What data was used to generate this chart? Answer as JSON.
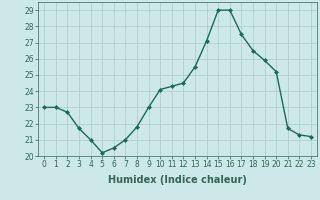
{
  "x": [
    0,
    1,
    2,
    3,
    4,
    5,
    6,
    7,
    8,
    9,
    10,
    11,
    12,
    13,
    14,
    15,
    16,
    17,
    18,
    19,
    20,
    21,
    22,
    23
  ],
  "y": [
    23.0,
    23.0,
    22.7,
    21.7,
    21.0,
    20.2,
    20.5,
    21.0,
    21.8,
    23.0,
    24.1,
    24.3,
    24.5,
    25.5,
    27.1,
    29.0,
    29.0,
    27.5,
    26.5,
    25.9,
    25.2,
    21.7,
    21.3,
    21.2
  ],
  "line_color": "#1a6b5a",
  "marker": "D",
  "markersize": 2.0,
  "linewidth": 1.0,
  "xlim": [
    -0.5,
    23.5
  ],
  "ylim": [
    20,
    29.5
  ],
  "yticks": [
    20,
    21,
    22,
    23,
    24,
    25,
    26,
    27,
    28,
    29
  ],
  "xticks": [
    0,
    1,
    2,
    3,
    4,
    5,
    6,
    7,
    8,
    9,
    10,
    11,
    12,
    13,
    14,
    15,
    16,
    17,
    18,
    19,
    20,
    21,
    22,
    23
  ],
  "xlabel": "Humidex (Indice chaleur)",
  "xlabel_fontsize": 7,
  "tick_fontsize": 5.5,
  "bg_color": "#cce8e8",
  "grid_color": "#aacccc",
  "axis_color": "#336655"
}
